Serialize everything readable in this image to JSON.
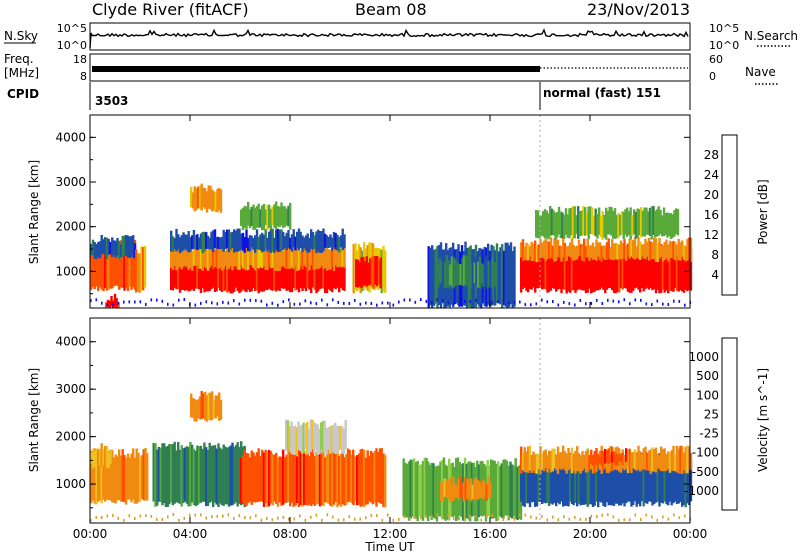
{
  "header": {
    "station": "Clyde River (fitACF)",
    "beam": "Beam 08",
    "date": "23/Nov/2013"
  },
  "status_panels": {
    "nsky": {
      "left_label": "N.Sky",
      "ticks_left": [
        "10^5",
        "10^0"
      ],
      "right_label": "N.Search",
      "ticks_right": [
        "10^5",
        "10^0"
      ]
    },
    "freq": {
      "left_label_1": "Freq.",
      "left_label_2": "[MHz]",
      "ticks_left": [
        "18",
        "8"
      ],
      "right_label": "Nave",
      "ticks_right": [
        "60",
        "0"
      ]
    },
    "cpid": {
      "label": "CPID",
      "first_id": "3503",
      "second_label": "normal (fast) 151",
      "switch_hour": 18.0
    }
  },
  "chart_data": [
    {
      "type": "heatmap",
      "quantity": "Power",
      "ylabel": "Slant Range [km]",
      "ylim": [
        180,
        4500
      ],
      "yticks": [
        "1000",
        "2000",
        "3000",
        "4000"
      ],
      "xlim": [
        0,
        24
      ],
      "xticks": [
        "00:00",
        "04:00",
        "08:00",
        "12:00",
        "16:00",
        "20:00",
        "00:00"
      ],
      "colorbar": {
        "label": "Power [dB]",
        "ticks": [
          "4",
          "8",
          "12",
          "16",
          "20",
          "24",
          "28"
        ],
        "colors": [
          "#1010e0",
          "#1e4fa8",
          "#2f7f55",
          "#5aaa3a",
          "#e8c800",
          "#f08a10",
          "#ff5000",
          "#ff0000"
        ]
      },
      "regions": [
        {
          "t0": 0.0,
          "t1": 1.8,
          "r0": 650,
          "r1": 1700,
          "level": 6
        },
        {
          "t0": 0.0,
          "t1": 1.8,
          "r0": 1350,
          "r1": 1750,
          "level": 1
        },
        {
          "t0": 1.8,
          "t1": 2.2,
          "r0": 600,
          "r1": 1500,
          "level": 5
        },
        {
          "t0": 3.2,
          "t1": 10.2,
          "r0": 600,
          "r1": 1300,
          "level": 7
        },
        {
          "t0": 3.2,
          "t1": 10.2,
          "r0": 1100,
          "r1": 1600,
          "level": 5
        },
        {
          "t0": 3.2,
          "t1": 10.2,
          "r0": 1500,
          "r1": 1900,
          "level": 1
        },
        {
          "t0": 4.0,
          "t1": 5.2,
          "r0": 2400,
          "r1": 2900,
          "level": 5
        },
        {
          "t0": 6.0,
          "t1": 8.0,
          "r0": 2000,
          "r1": 2500,
          "level": 3
        },
        {
          "t0": 10.5,
          "t1": 11.8,
          "r0": 600,
          "r1": 1600,
          "level": 4
        },
        {
          "t0": 10.6,
          "t1": 11.6,
          "r0": 700,
          "r1": 1300,
          "level": 7
        },
        {
          "t0": 13.5,
          "t1": 17.0,
          "r0": 250,
          "r1": 1600,
          "level": 1
        },
        {
          "t0": 13.8,
          "t1": 16.2,
          "r0": 700,
          "r1": 1300,
          "level": 2
        },
        {
          "t0": 17.2,
          "t1": 24.0,
          "r0": 600,
          "r1": 1550,
          "level": 7
        },
        {
          "t0": 17.2,
          "t1": 24.0,
          "r0": 1300,
          "r1": 1700,
          "level": 5
        },
        {
          "t0": 0.6,
          "t1": 1.1,
          "r0": 200,
          "r1": 450,
          "level": 7
        },
        {
          "t0": 17.8,
          "t1": 23.5,
          "r0": 1800,
          "r1": 2400,
          "level": 3
        }
      ]
    },
    {
      "type": "heatmap",
      "quantity": "Velocity",
      "ylabel": "Slant Range [km]",
      "ylim": [
        180,
        4500
      ],
      "yticks": [
        "1000",
        "2000",
        "3000",
        "4000"
      ],
      "xlim": [
        0,
        24
      ],
      "xticks": [
        "00:00",
        "04:00",
        "08:00",
        "12:00",
        "16:00",
        "20:00",
        "00:00"
      ],
      "xlabel": "Time UT",
      "colorbar": {
        "label": "Velocity [m s^-1]",
        "ticks": [
          "1000",
          "500",
          "100",
          "25",
          "-25",
          "-100",
          "-500",
          "-1000"
        ],
        "colors": [
          "#1e4fa8",
          "#2f7f55",
          "#5aaa3a",
          "#8fcf4a",
          "#c8c8c8",
          "#f0c020",
          "#f08a10",
          "#ff5000",
          "#ff0000"
        ]
      },
      "regions": [
        {
          "t0": 0.0,
          "t1": 2.3,
          "r0": 650,
          "r1": 1700,
          "level": 6
        },
        {
          "t0": 0.0,
          "t1": 0.8,
          "r0": 1400,
          "r1": 1800,
          "level": 5
        },
        {
          "t0": 2.5,
          "t1": 6.2,
          "r0": 600,
          "r1": 1850,
          "level": 1
        },
        {
          "t0": 6.0,
          "t1": 10.5,
          "r0": 600,
          "r1": 1700,
          "level": 7
        },
        {
          "t0": 7.8,
          "t1": 10.2,
          "r0": 1700,
          "r1": 2300,
          "level": 4
        },
        {
          "t0": 4.0,
          "t1": 5.2,
          "r0": 2400,
          "r1": 2900,
          "level": 6
        },
        {
          "t0": 10.5,
          "t1": 11.8,
          "r0": 600,
          "r1": 1700,
          "level": 7
        },
        {
          "t0": 12.5,
          "t1": 17.2,
          "r0": 300,
          "r1": 1500,
          "level": 2
        },
        {
          "t0": 14.0,
          "t1": 16.0,
          "r0": 700,
          "r1": 1100,
          "level": 6
        },
        {
          "t0": 17.2,
          "t1": 24.0,
          "r0": 600,
          "r1": 1600,
          "level": 0
        },
        {
          "t0": 17.2,
          "t1": 24.0,
          "r0": 1300,
          "r1": 1750,
          "level": 6
        },
        {
          "t0": 20.0,
          "t1": 21.5,
          "r0": 1450,
          "r1": 1700,
          "level": 7
        }
      ]
    }
  ]
}
